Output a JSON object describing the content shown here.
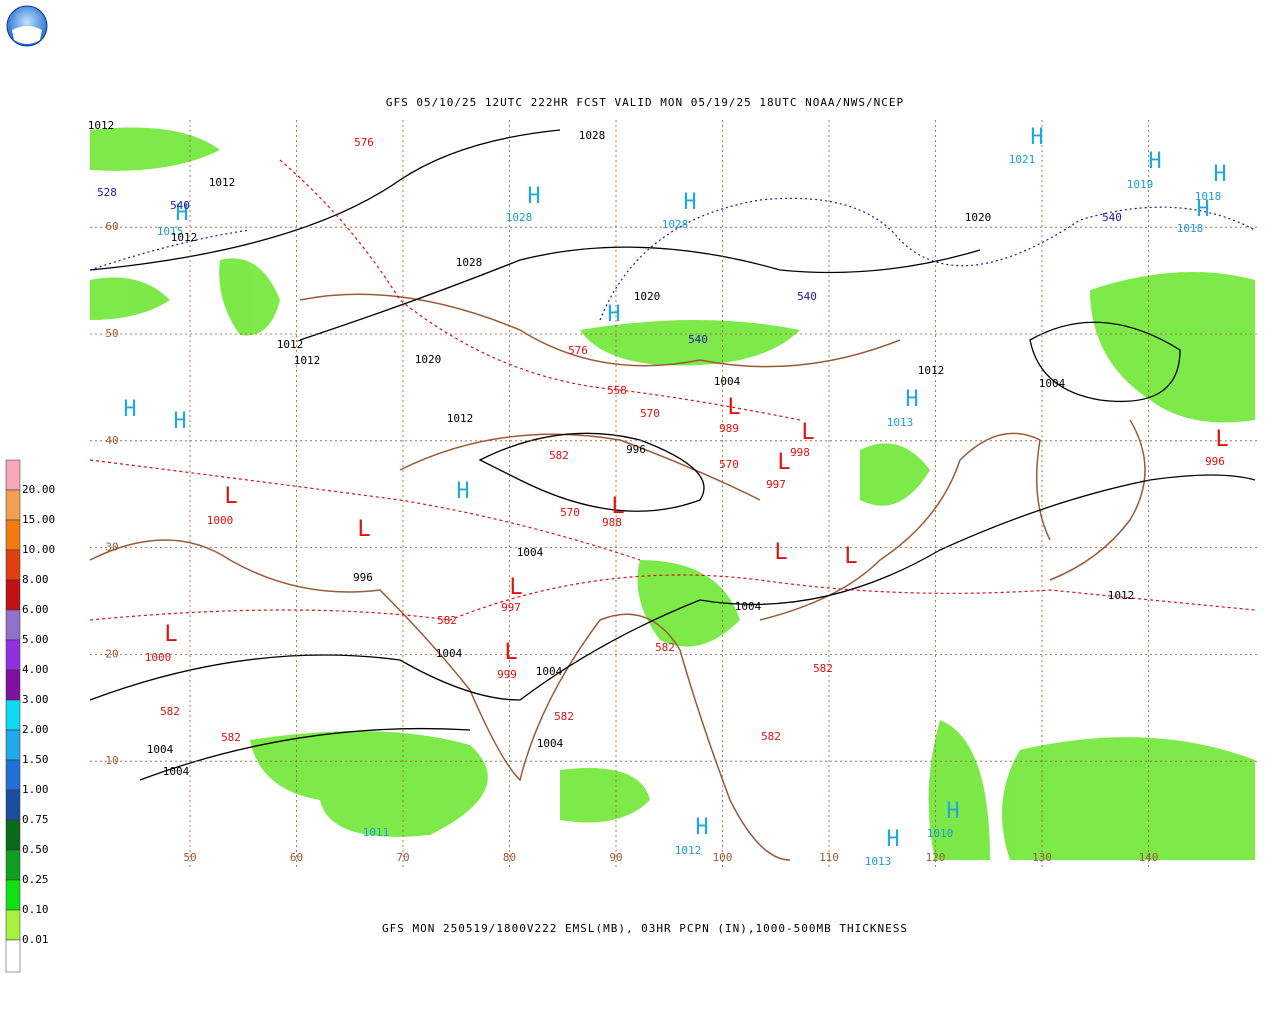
{
  "header": {
    "title": "GFS 05/10/25 12UTC 222HR FCST VALID MON 05/19/25 18UTC NOAA/NWS/NCEP",
    "caption": "GFS MON 250519/1800V222 EMSL(MB), 03HR PCPN (IN),1000-500MB THICKNESS"
  },
  "legend": [
    {
      "label": "20.00",
      "color": "#f4a8b8"
    },
    {
      "label": "15.00",
      "color": "#f0a050"
    },
    {
      "label": "10.00",
      "color": "#f07a10"
    },
    {
      "label": "8.00",
      "color": "#e04010"
    },
    {
      "label": "6.00",
      "color": "#c01018"
    },
    {
      "label": "5.00",
      "color": "#9070c8"
    },
    {
      "label": "4.00",
      "color": "#9030e0"
    },
    {
      "label": "3.00",
      "color": "#8010a0"
    },
    {
      "label": "2.00",
      "color": "#10d8f0"
    },
    {
      "label": "1.50",
      "color": "#20a8e8"
    },
    {
      "label": "1.00",
      "color": "#2070d8"
    },
    {
      "label": "0.75",
      "color": "#1c4ea0"
    },
    {
      "label": "0.50",
      "color": "#0a6a1a"
    },
    {
      "label": "0.25",
      "color": "#10a020"
    },
    {
      "label": "0.10",
      "color": "#10e010"
    },
    {
      "label": "0.01",
      "color": "#a8f040"
    }
  ],
  "lon_ticks": [
    50,
    60,
    70,
    80,
    90,
    100,
    110,
    120,
    130,
    140
  ],
  "lat_ticks": [
    10,
    20,
    30,
    40,
    50,
    60
  ],
  "styles": {
    "high": "#22a8dc",
    "highval": "#1c9ad6",
    "low": "#e01010",
    "lowval": "#e01010",
    "pressure": "#000000",
    "thick": "#e01010",
    "thick540": "#1a1aaa",
    "geo": "#9b5a36"
  },
  "labels": [
    {
      "text": "H",
      "style": "high"
    },
    {
      "text": "1028",
      "style": "highval"
    },
    {
      "text": "H",
      "style": "high"
    },
    {
      "text": "1028",
      "style": "highval"
    },
    {
      "text": "H",
      "style": "high"
    },
    {
      "text": "1015",
      "style": "highval"
    },
    {
      "text": "H",
      "style": "high"
    },
    {
      "text": "1021",
      "style": "highval"
    },
    {
      "text": "H",
      "style": "high"
    },
    {
      "text": "1019",
      "style": "highval"
    },
    {
      "text": "H",
      "style": "high"
    },
    {
      "text": "1018",
      "style": "highval"
    },
    {
      "text": "H",
      "style": "high"
    },
    {
      "text": "1018",
      "style": "highval"
    },
    {
      "text": "H",
      "style": "high"
    },
    {
      "text": "H",
      "style": "high"
    },
    {
      "text": "H",
      "style": "high"
    },
    {
      "text": "H",
      "style": "high"
    },
    {
      "text": "1013",
      "style": "highval"
    },
    {
      "text": "H",
      "style": "high"
    },
    {
      "text": "H",
      "style": "high"
    },
    {
      "text": "1012",
      "style": "highval"
    },
    {
      "text": "H",
      "style": "high"
    },
    {
      "text": "1013",
      "style": "highval"
    },
    {
      "text": "H",
      "style": "high"
    },
    {
      "text": "1010",
      "style": "highval"
    },
    {
      "text": "1011",
      "style": "highval"
    },
    {
      "text": "L",
      "style": "low"
    },
    {
      "text": "1000",
      "style": "lowval"
    },
    {
      "text": "L",
      "style": "low"
    },
    {
      "text": "1000",
      "style": "lowval"
    },
    {
      "text": "L",
      "style": "low"
    },
    {
      "text": "989",
      "style": "lowval"
    },
    {
      "text": "L",
      "style": "low"
    },
    {
      "text": "998",
      "style": "lowval"
    },
    {
      "text": "L",
      "style": "low"
    },
    {
      "text": "997",
      "style": "lowval"
    },
    {
      "text": "L",
      "style": "low"
    },
    {
      "text": "988",
      "style": "lowval"
    },
    {
      "text": "L",
      "style": "low"
    },
    {
      "text": "997",
      "style": "lowval"
    },
    {
      "text": "L",
      "style": "low"
    },
    {
      "text": "999",
      "style": "lowval"
    },
    {
      "text": "L",
      "style": "low"
    },
    {
      "text": "996",
      "style": "lowval"
    },
    {
      "text": "L",
      "style": "low"
    },
    {
      "text": "L",
      "style": "low"
    },
    {
      "text": "L",
      "style": "low"
    },
    {
      "text": "1012",
      "style": "pressure"
    },
    {
      "text": "1012",
      "style": "pressure"
    },
    {
      "text": "1012",
      "style": "pressure"
    },
    {
      "text": "1012",
      "style": "pressure"
    },
    {
      "text": "1012",
      "style": "pressure"
    },
    {
      "text": "1012",
      "style": "pressure"
    },
    {
      "text": "1012",
      "style": "pressure"
    },
    {
      "text": "1012",
      "style": "pressure"
    },
    {
      "text": "1020",
      "style": "pressure"
    },
    {
      "text": "1020",
      "style": "pressure"
    },
    {
      "text": "1020",
      "style": "pressure"
    },
    {
      "text": "1028",
      "style": "pressure"
    },
    {
      "text": "1028",
      "style": "pressure"
    },
    {
      "text": "1004",
      "style": "pressure"
    },
    {
      "text": "1004",
      "style": "pressure"
    },
    {
      "text": "1004",
      "style": "pressure"
    },
    {
      "text": "1004",
      "style": "pressure"
    },
    {
      "text": "1004",
      "style": "pressure"
    },
    {
      "text": "1004",
      "style": "pressure"
    },
    {
      "text": "1004",
      "style": "pressure"
    },
    {
      "text": "1004",
      "style": "pressure"
    },
    {
      "text": "1004",
      "style": "pressure"
    },
    {
      "text": "996",
      "style": "pressure"
    },
    {
      "text": "996",
      "style": "pressure"
    },
    {
      "text": "576",
      "style": "thick"
    },
    {
      "text": "576",
      "style": "thick"
    },
    {
      "text": "570",
      "style": "thick"
    },
    {
      "text": "570",
      "style": "thick"
    },
    {
      "text": "582",
      "style": "thick"
    },
    {
      "text": "582",
      "style": "thick"
    },
    {
      "text": "582",
      "style": "thick"
    },
    {
      "text": "582",
      "style": "thick"
    },
    {
      "text": "582",
      "style": "thick"
    },
    {
      "text": "582",
      "style": "thick"
    },
    {
      "text": "582",
      "style": "thick"
    },
    {
      "text": "582",
      "style": "thick"
    },
    {
      "text": "558",
      "style": "thick"
    },
    {
      "text": "570",
      "style": "thick"
    },
    {
      "text": "540",
      "style": "thick540"
    },
    {
      "text": "540",
      "style": "thick540"
    },
    {
      "text": "540",
      "style": "thick540"
    },
    {
      "text": "540",
      "style": "thick540"
    },
    {
      "text": "528",
      "style": "thick540"
    }
  ]
}
